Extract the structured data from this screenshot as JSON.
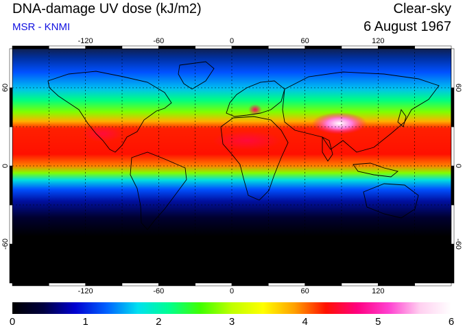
{
  "header": {
    "title": "DNA-damage UV dose (kJ/m2)",
    "subtitle": "MSR - KNMI",
    "condition": "Clear-sky",
    "date": "6 August 1967"
  },
  "map": {
    "lon_ticks": [
      -120,
      -60,
      0,
      60,
      120
    ],
    "lon_tick_labels": [
      "-120",
      "-60",
      "0",
      "60",
      "120"
    ],
    "lat_ticks": [
      60,
      0,
      -60
    ],
    "lat_tick_labels": [
      "60",
      "0",
      "-60"
    ],
    "lon_range": [
      -180,
      180
    ],
    "lat_range": [
      -90,
      90
    ],
    "grid": "dotted every 30 degrees",
    "coastlines": true
  },
  "colorbar": {
    "range": [
      0,
      6
    ],
    "tick_values": [
      0,
      1,
      2,
      3,
      4,
      5,
      6
    ],
    "tick_labels": [
      "0",
      "1",
      "2",
      "3",
      "4",
      "5",
      "6"
    ],
    "colors": [
      "#000000",
      "#000040",
      "#0000d0",
      "#0060ff",
      "#00e0f0",
      "#00ff90",
      "#40ff00",
      "#c0ff00",
      "#ffff00",
      "#ffa000",
      "#ff1000",
      "#ff0080",
      "#ff40d0",
      "#ffd0f0",
      "#ffffff"
    ]
  },
  "colors": {
    "subtitle": "#1010e0",
    "coastline": "#000000",
    "grid": "#000000"
  }
}
